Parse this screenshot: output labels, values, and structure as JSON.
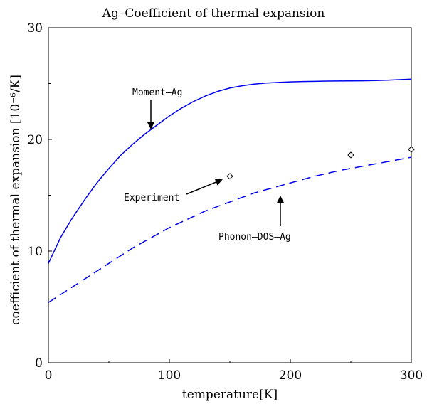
{
  "chart_data": {
    "type": "line",
    "title": "Ag–Coefficient of thermal expansion",
    "xlabel": "temperature[K]",
    "ylabel": "coefficient of thermal expansion [10⁻⁶/K]",
    "xlim": [
      0,
      300
    ],
    "ylim": [
      0,
      30
    ],
    "x_ticks": [
      0,
      100,
      200,
      300
    ],
    "y_ticks": [
      0,
      10,
      20,
      30
    ],
    "x_tick_labels": [
      "0",
      "100",
      "200",
      "300"
    ],
    "y_tick_labels": [
      "0",
      "10",
      "20",
      "30"
    ],
    "grid": false,
    "series": [
      {
        "name": "Moment–Ag",
        "style": "solid",
        "color": "#0000ee",
        "x": [
          0,
          10,
          20,
          30,
          40,
          50,
          60,
          70,
          80,
          90,
          100,
          110,
          120,
          130,
          140,
          150,
          160,
          170,
          180,
          190,
          200,
          210,
          220,
          230,
          240,
          250,
          260,
          270,
          280,
          290,
          300
        ],
        "y": [
          8.9,
          11.2,
          13.0,
          14.6,
          16.1,
          17.4,
          18.6,
          19.6,
          20.5,
          21.3,
          22.1,
          22.8,
          23.4,
          23.9,
          24.3,
          24.6,
          24.8,
          24.95,
          25.05,
          25.1,
          25.15,
          25.18,
          25.2,
          25.22,
          25.23,
          25.24,
          25.25,
          25.27,
          25.3,
          25.35,
          25.4
        ]
      },
      {
        "name": "Phonon–DOS–Ag",
        "style": "dashed",
        "color": "#0000ee",
        "x": [
          0,
          10,
          20,
          30,
          40,
          50,
          60,
          70,
          80,
          90,
          100,
          110,
          120,
          130,
          140,
          150,
          160,
          170,
          180,
          190,
          200,
          210,
          220,
          230,
          240,
          250,
          260,
          270,
          280,
          290,
          300
        ],
        "y": [
          5.4,
          6.1,
          6.8,
          7.5,
          8.2,
          8.9,
          9.6,
          10.3,
          10.9,
          11.5,
          12.1,
          12.6,
          13.1,
          13.6,
          14.0,
          14.4,
          14.8,
          15.2,
          15.5,
          15.8,
          16.1,
          16.4,
          16.7,
          16.95,
          17.2,
          17.4,
          17.6,
          17.8,
          18.0,
          18.2,
          18.4
        ]
      },
      {
        "name": "Experiment",
        "style": "markers",
        "marker": "diamond",
        "color": "#000000",
        "x": [
          150,
          250,
          300
        ],
        "y": [
          16.7,
          18.6,
          19.1
        ]
      }
    ],
    "annotations": [
      {
        "text": "Moment–Ag",
        "target_series": "Moment–Ag",
        "arrow_dir": "down"
      },
      {
        "text": "Experiment",
        "target_series": "Experiment",
        "arrow_dir": "up-right"
      },
      {
        "text": "Phonon–DOS–Ag",
        "target_series": "Phonon–DOS–Ag",
        "arrow_dir": "up"
      }
    ]
  }
}
